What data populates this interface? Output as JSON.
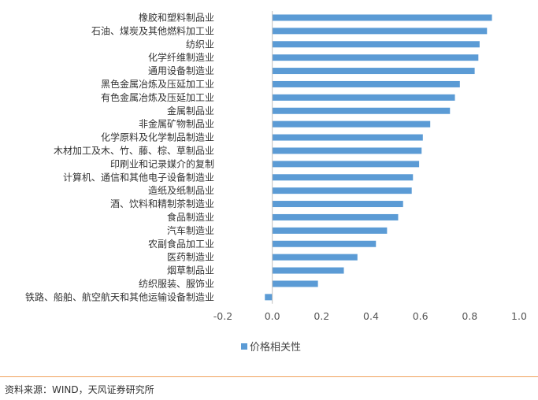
{
  "chart_data": {
    "type": "bar",
    "orientation": "horizontal",
    "categories": [
      "橡胶和塑料制品业",
      "石油、煤炭及其他燃料加工业",
      "纺织业",
      "化学纤维制造业",
      "通用设备制造业",
      "黑色金属冶炼及压延加工业",
      "有色金属冶炼及压延加工业",
      "金属制品业",
      "非金属矿物制品业",
      "化学原料及化学制品制造业",
      "木材加工及木、竹、藤、棕、草制品业",
      "印刷业和记录媒介的复制",
      "计算机、通信和其他电子设备制造业",
      "造纸及纸制品业",
      "酒、饮料和精制茶制造业",
      "食品制造业",
      "汽车制造业",
      "农副食品加工业",
      "医药制造业",
      "烟草制品业",
      "纺织服装、服饰业",
      "铁路、船舶、航空航天和其他运输设备制造业"
    ],
    "series": [
      {
        "name": "价格相关性",
        "color": "#5b9bd5",
        "values": [
          0.89,
          0.87,
          0.84,
          0.835,
          0.82,
          0.76,
          0.74,
          0.72,
          0.64,
          0.61,
          0.605,
          0.595,
          0.57,
          0.565,
          0.53,
          0.51,
          0.465,
          0.42,
          0.345,
          0.29,
          0.185,
          -0.03
        ]
      }
    ],
    "xticks": [
      "-0.2",
      "0.0",
      "0.2",
      "0.4",
      "0.6",
      "0.8",
      "1.0"
    ],
    "xlim": [
      -0.2,
      1.0
    ],
    "grid": false,
    "legend_position": "bottom"
  },
  "source_text": "资料来源：WIND，天风证券研究所",
  "colors": {
    "bar": "#5b9bd5",
    "axis": "#bfbfbf",
    "footer_rule": "#f0a05a"
  }
}
